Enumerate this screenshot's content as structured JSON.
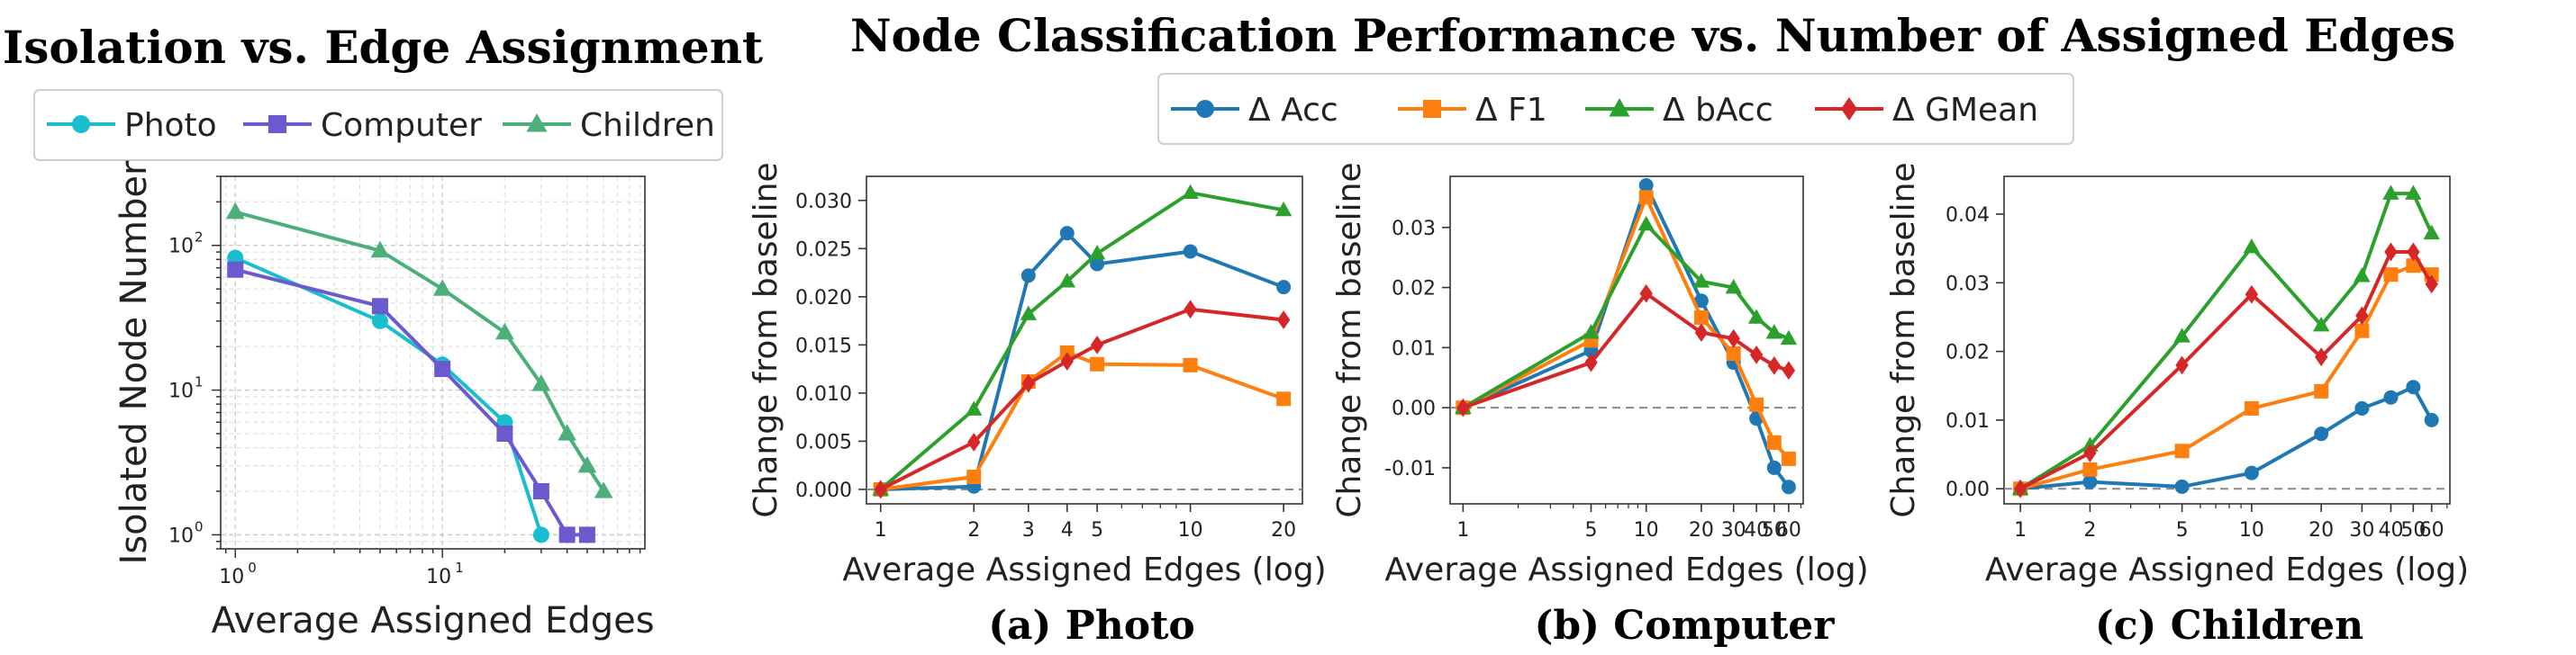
{
  "colors": {
    "photo": "#17becf",
    "computer": "#6a5acd",
    "children": "#4caf7a",
    "acc": "#1f77b4",
    "f1": "#ff7f0e",
    "bacc": "#2ca02c",
    "gmean": "#d62728",
    "baseline": "#888888"
  },
  "chart_data": [
    {
      "type": "line",
      "title": "Isolation vs. Edge Assignment",
      "xlabel": "Average Assigned Edges",
      "ylabel": "Isolated Node Number",
      "xscale": "log",
      "yscale": "log",
      "xlim": [
        0.85,
        95
      ],
      "ylim": [
        0.8,
        300
      ],
      "xticks": [
        {
          "v": 1,
          "base": "10",
          "exp": "0"
        },
        {
          "v": 10,
          "base": "10",
          "exp": "1"
        }
      ],
      "yticks": [
        {
          "v": 1,
          "base": "10",
          "exp": "0"
        },
        {
          "v": 10,
          "base": "10",
          "exp": "1"
        },
        {
          "v": 100,
          "base": "10",
          "exp": "2"
        }
      ],
      "grid": true,
      "legend_position": "top",
      "series": [
        {
          "name": "Photo",
          "color_key": "photo",
          "marker": "circle",
          "x": [
            1,
            5,
            10,
            20,
            30
          ],
          "y": [
            82,
            30,
            15,
            6,
            1
          ]
        },
        {
          "name": "Computer",
          "color_key": "computer",
          "marker": "square",
          "x": [
            1,
            5,
            10,
            20,
            30,
            40,
            50
          ],
          "y": [
            68,
            38,
            14,
            5,
            2,
            1,
            1
          ]
        },
        {
          "name": "Children",
          "color_key": "children",
          "marker": "triangle",
          "x": [
            1,
            5,
            10,
            20,
            30,
            40,
            50,
            60
          ],
          "y": [
            170,
            92,
            50,
            25,
            11,
            5,
            3,
            2
          ]
        }
      ]
    },
    {
      "type": "line",
      "panel_title": "Node Classification Performance vs. Number of Assigned Edges",
      "legend": [
        "Δ Acc",
        "Δ F1",
        "Δ bAcc",
        "Δ GMean"
      ],
      "subplots": [
        {
          "caption": "(a) Photo",
          "xlabel": "Average Assigned Edges (log)",
          "ylabel": "Change from baseline",
          "xscale": "log",
          "xlim": [
            0.9,
            23
          ],
          "ylim": [
            -0.0015,
            0.0325
          ],
          "xticks": [
            "1",
            "2",
            "3",
            "4",
            "5",
            "10",
            "20"
          ],
          "xtick_values": [
            1,
            2,
            3,
            4,
            5,
            10,
            20
          ],
          "yticks": [
            "0.000",
            "0.005",
            "0.010",
            "0.015",
            "0.020",
            "0.025",
            "0.030"
          ],
          "ytick_values": [
            0,
            0.005,
            0.01,
            0.015,
            0.02,
            0.025,
            0.03
          ],
          "baseline": 0,
          "x": [
            1,
            2,
            3,
            4,
            5,
            10,
            20
          ],
          "series": [
            {
              "name": "Δ Acc",
              "color_key": "acc",
              "marker": "circle",
              "values": [
                0.0,
                0.0003,
                0.0222,
                0.0266,
                0.0234,
                0.0247,
                0.021
              ]
            },
            {
              "name": "Δ F1",
              "color_key": "f1",
              "marker": "square",
              "values": [
                0.0,
                0.0013,
                0.0112,
                0.0142,
                0.013,
                0.0129,
                0.0094
              ]
            },
            {
              "name": "Δ bAcc",
              "color_key": "bacc",
              "marker": "triangle",
              "values": [
                0.0,
                0.0083,
                0.0182,
                0.0216,
                0.0245,
                0.0308,
                0.029
              ]
            },
            {
              "name": "Δ GMean",
              "color_key": "gmean",
              "marker": "diamond",
              "values": [
                0.0,
                0.0049,
                0.011,
                0.0133,
                0.015,
                0.0187,
                0.0176
              ]
            }
          ]
        },
        {
          "caption": "(b) Computer",
          "xlabel": "Average Assigned Edges (log)",
          "ylabel": "Change from baseline",
          "xscale": "log",
          "xlim": [
            0.85,
            72
          ],
          "ylim": [
            -0.016,
            0.0385
          ],
          "xticks": [
            "1",
            "5",
            "10",
            "20",
            "30",
            "40",
            "50",
            "60"
          ],
          "xtick_values": [
            1,
            5,
            10,
            20,
            30,
            40,
            50,
            60
          ],
          "yticks": [
            "-0.01",
            "0.00",
            "0.01",
            "0.02",
            "0.03"
          ],
          "ytick_values": [
            -0.01,
            0,
            0.01,
            0.02,
            0.03
          ],
          "baseline": 0,
          "x": [
            1,
            5,
            10,
            20,
            30,
            40,
            50,
            60
          ],
          "series": [
            {
              "name": "Δ Acc",
              "color_key": "acc",
              "marker": "circle",
              "values": [
                0.0,
                0.0095,
                0.037,
                0.0178,
                0.0075,
                -0.0018,
                -0.01,
                -0.0132
              ]
            },
            {
              "name": "Δ F1",
              "color_key": "f1",
              "marker": "square",
              "values": [
                0.0,
                0.0112,
                0.035,
                0.015,
                0.009,
                0.0005,
                -0.0058,
                -0.0085
              ]
            },
            {
              "name": "Δ bAcc",
              "color_key": "bacc",
              "marker": "triangle",
              "values": [
                0.0,
                0.0125,
                0.0305,
                0.021,
                0.02,
                0.015,
                0.0125,
                0.0115
              ]
            },
            {
              "name": "Δ GMean",
              "color_key": "gmean",
              "marker": "diamond",
              "values": [
                0.0,
                0.0075,
                0.019,
                0.0125,
                0.0115,
                0.0088,
                0.007,
                0.0062
              ]
            }
          ]
        },
        {
          "caption": "(c) Children",
          "xlabel": "Average Assigned Edges (log)",
          "ylabel": "Change from baseline",
          "xscale": "log",
          "xlim": [
            0.85,
            72
          ],
          "ylim": [
            -0.0022,
            0.0455
          ],
          "xticks": [
            "1",
            "2",
            "5",
            "10",
            "20",
            "30",
            "40",
            "50",
            "60"
          ],
          "xtick_values": [
            1,
            2,
            5,
            10,
            20,
            30,
            40,
            50,
            60
          ],
          "yticks": [
            "0.00",
            "0.01",
            "0.02",
            "0.03",
            "0.04"
          ],
          "ytick_values": [
            0,
            0.01,
            0.02,
            0.03,
            0.04
          ],
          "baseline": 0,
          "x": [
            1,
            2,
            5,
            10,
            20,
            30,
            40,
            50,
            60
          ],
          "series": [
            {
              "name": "Δ Acc",
              "color_key": "acc",
              "marker": "circle",
              "values": [
                0.0,
                0.001,
                0.0003,
                0.0023,
                0.008,
                0.0117,
                0.0133,
                0.0148,
                0.01
              ]
            },
            {
              "name": "Δ F1",
              "color_key": "f1",
              "marker": "square",
              "values": [
                0.0,
                0.0028,
                0.0055,
                0.0117,
                0.0142,
                0.023,
                0.0312,
                0.0325,
                0.0312
              ]
            },
            {
              "name": "Δ bAcc",
              "color_key": "bacc",
              "marker": "triangle",
              "values": [
                0.0,
                0.0063,
                0.0222,
                0.0352,
                0.0238,
                0.031,
                0.043,
                0.043,
                0.0372
              ]
            },
            {
              "name": "Δ GMean",
              "color_key": "gmean",
              "marker": "diamond",
              "values": [
                0.0,
                0.0052,
                0.018,
                0.0283,
                0.0192,
                0.0252,
                0.0345,
                0.0345,
                0.0298
              ]
            }
          ]
        }
      ]
    }
  ]
}
